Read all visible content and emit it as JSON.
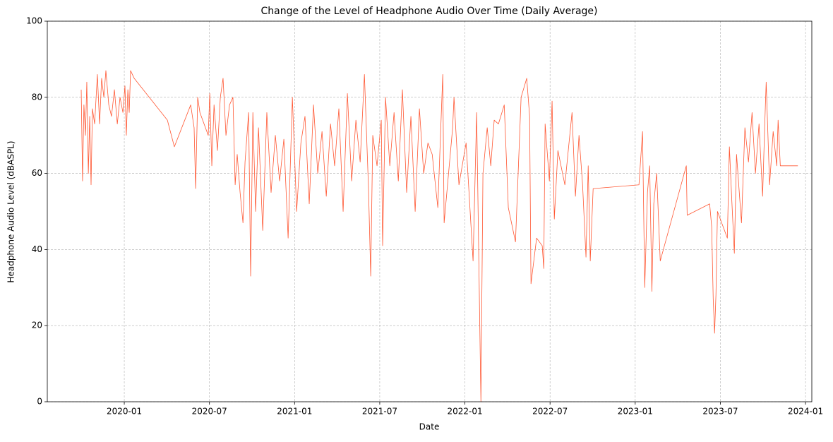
{
  "chart_data": {
    "type": "line",
    "title": "Change of the Level of Headphone Audio Over Time (Daily Average)",
    "x_label": "Date",
    "y_label": "Headphone Audio Level (dBASPL)",
    "xlim": [
      2019.548,
      2024.037
    ],
    "xticks": [
      {
        "value": 2020.0,
        "label": "2020-01"
      },
      {
        "value": 2020.5,
        "label": "2020-07"
      },
      {
        "value": 2021.0,
        "label": "2021-01"
      },
      {
        "value": 2021.5,
        "label": "2021-07"
      },
      {
        "value": 2022.0,
        "label": "2022-01"
      },
      {
        "value": 2022.5,
        "label": "2022-07"
      },
      {
        "value": 2023.0,
        "label": "2023-01"
      },
      {
        "value": 2023.5,
        "label": "2023-07"
      },
      {
        "value": 2024.0,
        "label": "2024-01"
      }
    ],
    "ylim": [
      0,
      100
    ],
    "yticks": [
      0,
      20,
      40,
      60,
      80,
      100
    ],
    "grid": true,
    "color": "#ff5733",
    "x": [
      2019.747,
      2019.755,
      2019.763,
      2019.772,
      2019.78,
      2019.789,
      2019.797,
      2019.805,
      2019.813,
      2019.826,
      2019.842,
      2019.855,
      2019.867,
      2019.88,
      2019.892,
      2019.909,
      2019.925,
      2019.942,
      2019.959,
      2019.975,
      2019.992,
      2020.004,
      2020.012,
      2020.021,
      2020.029,
      2020.037,
      2020.058,
      2020.253,
      2020.294,
      2020.39,
      2020.41,
      2020.419,
      2020.431,
      2020.444,
      2020.493,
      2020.502,
      2020.514,
      2020.527,
      2020.547,
      2020.564,
      2020.58,
      2020.597,
      2020.618,
      2020.638,
      2020.651,
      2020.663,
      2020.68,
      2020.697,
      2020.709,
      2020.73,
      2020.742,
      2020.755,
      2020.771,
      2020.788,
      2020.813,
      2020.837,
      2020.862,
      2020.887,
      2020.912,
      2020.937,
      2020.962,
      2020.987,
      2021.012,
      2021.037,
      2021.061,
      2021.086,
      2021.111,
      2021.136,
      2021.161,
      2021.186,
      2021.211,
      2021.235,
      2021.26,
      2021.285,
      2021.31,
      2021.335,
      2021.36,
      2021.385,
      2021.41,
      2021.434,
      2021.447,
      2021.459,
      2021.484,
      2021.509,
      2021.517,
      2021.534,
      2021.559,
      2021.584,
      2021.609,
      2021.633,
      2021.658,
      2021.683,
      2021.708,
      2021.733,
      2021.758,
      2021.783,
      2021.808,
      2021.841,
      2021.87,
      2021.878,
      2021.928,
      2021.936,
      2021.965,
      2022.007,
      2022.048,
      2022.069,
      2022.094,
      2022.106,
      2022.131,
      2022.152,
      2022.172,
      2022.197,
      2022.231,
      2022.255,
      2022.297,
      2022.33,
      2022.363,
      2022.38,
      2022.388,
      2022.421,
      2022.454,
      2022.463,
      2022.471,
      2022.496,
      2022.512,
      2022.525,
      2022.546,
      2022.587,
      2022.629,
      2022.649,
      2022.67,
      2022.691,
      2022.711,
      2022.724,
      2022.736,
      2022.753,
      2023.022,
      2023.043,
      2023.056,
      2023.072,
      2023.085,
      2023.098,
      2023.109,
      2023.126,
      2023.147,
      2023.3,
      2023.305,
      2023.437,
      2023.449,
      2023.458,
      2023.466,
      2023.474,
      2023.483,
      2023.541,
      2023.553,
      2023.566,
      2023.582,
      2023.595,
      2023.624,
      2023.644,
      2023.665,
      2023.686,
      2023.706,
      2023.727,
      2023.748,
      2023.76,
      2023.769,
      2023.789,
      2023.81,
      2023.831,
      2023.839,
      2023.852,
      2023.955
    ],
    "values": [
      82,
      58,
      78,
      70,
      84,
      60,
      75,
      57,
      77,
      73,
      86,
      73,
      85,
      80,
      87,
      78,
      75,
      82,
      73,
      80,
      76,
      83,
      70,
      82,
      76,
      87,
      85,
      74,
      67,
      78,
      72,
      56,
      80,
      76,
      70,
      81,
      62,
      78,
      66,
      80,
      85,
      70,
      78,
      80,
      57,
      65,
      55,
      47,
      63,
      76,
      33,
      76,
      50,
      72,
      45,
      76,
      55,
      70,
      58,
      69,
      43,
      80,
      50,
      68,
      75,
      52,
      78,
      60,
      71,
      54,
      73,
      62,
      77,
      50,
      81,
      58,
      74,
      63,
      86,
      56,
      33,
      70,
      62,
      74,
      41,
      80,
      62,
      76,
      58,
      82,
      55,
      75,
      50,
      77,
      60,
      68,
      65,
      51,
      86,
      47,
      72,
      80,
      57,
      68,
      37,
      76,
      0,
      60,
      72,
      62,
      74,
      73,
      78,
      51,
      42,
      80,
      85,
      75,
      31,
      43,
      41,
      35,
      73,
      58,
      79,
      48,
      66,
      57,
      76,
      54,
      70,
      57,
      38,
      62,
      37,
      56,
      57,
      71,
      30,
      55,
      62,
      29,
      52,
      60,
      37,
      62,
      49,
      52,
      46,
      27,
      18,
      28,
      50,
      43,
      67,
      54,
      39,
      65,
      47,
      72,
      63,
      76,
      60,
      73,
      54,
      72,
      84,
      57,
      71,
      62,
      74,
      62,
      62
    ]
  }
}
